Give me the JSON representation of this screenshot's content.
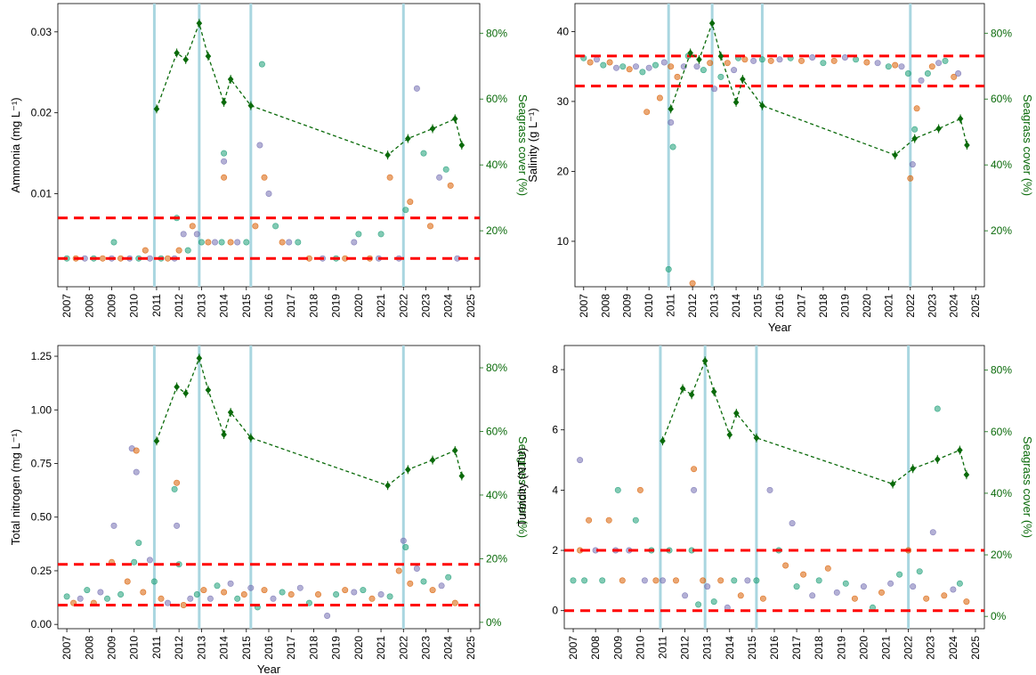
{
  "colors": {
    "threshold": "#ff0000",
    "event_line": "#a9d6e0",
    "seagrass": "#0a6a0a",
    "series": [
      "#1b9e77",
      "#d95f02",
      "#7570b3"
    ]
  },
  "chart_data": [
    {
      "type": "scatter",
      "ylabel": "Ammonia (mg L⁻¹)",
      "xlabel": "",
      "xlim": [
        2006.6,
        2025.4
      ],
      "ylim": [
        -0.0015,
        0.0335
      ],
      "yticks": [
        0.01,
        0.02,
        0.03
      ],
      "thresholds": [
        0.002,
        0.007
      ],
      "event_lines": [
        2010.9,
        2012.9,
        2015.2,
        2022.0
      ],
      "points": [
        [
          2007.0,
          0.002
        ],
        [
          2007.4,
          0.002
        ],
        [
          2007.8,
          0.002
        ],
        [
          2008.2,
          0.002
        ],
        [
          2008.6,
          0.002
        ],
        [
          2009.0,
          0.002
        ],
        [
          2009.1,
          0.004
        ],
        [
          2009.4,
          0.002
        ],
        [
          2009.8,
          0.002
        ],
        [
          2010.2,
          0.002
        ],
        [
          2010.5,
          0.003
        ],
        [
          2010.7,
          0.002
        ],
        [
          2011.2,
          0.002
        ],
        [
          2011.5,
          0.002
        ],
        [
          2011.8,
          0.002
        ],
        [
          2011.9,
          0.007
        ],
        [
          2012.0,
          0.003
        ],
        [
          2012.2,
          0.005
        ],
        [
          2012.4,
          0.003
        ],
        [
          2012.6,
          0.006
        ],
        [
          2012.8,
          0.005
        ],
        [
          2013.0,
          0.004
        ],
        [
          2013.3,
          0.004
        ],
        [
          2013.6,
          0.004
        ],
        [
          2013.9,
          0.004
        ],
        [
          2014.0,
          0.012
        ],
        [
          2014.0,
          0.014
        ],
        [
          2014.0,
          0.015
        ],
        [
          2014.3,
          0.004
        ],
        [
          2014.6,
          0.004
        ],
        [
          2015.0,
          0.004
        ],
        [
          2015.4,
          0.006
        ],
        [
          2015.6,
          0.016
        ],
        [
          2015.7,
          0.026
        ],
        [
          2015.8,
          0.012
        ],
        [
          2016.0,
          0.01
        ],
        [
          2016.3,
          0.006
        ],
        [
          2016.6,
          0.004
        ],
        [
          2016.9,
          0.004
        ],
        [
          2017.3,
          0.004
        ],
        [
          2017.8,
          0.002
        ],
        [
          2018.4,
          0.002
        ],
        [
          2019.0,
          0.002
        ],
        [
          2019.4,
          0.002
        ],
        [
          2019.8,
          0.004
        ],
        [
          2020.0,
          0.005
        ],
        [
          2020.5,
          0.002
        ],
        [
          2020.9,
          0.002
        ],
        [
          2021.0,
          0.005
        ],
        [
          2021.4,
          0.012
        ],
        [
          2021.8,
          0.002
        ],
        [
          2022.1,
          0.008
        ],
        [
          2022.3,
          0.009
        ],
        [
          2022.6,
          0.023
        ],
        [
          2022.9,
          0.015
        ],
        [
          2023.2,
          0.006
        ],
        [
          2023.6,
          0.012
        ],
        [
          2023.9,
          0.013
        ],
        [
          2024.1,
          0.011
        ],
        [
          2024.4,
          0.002
        ]
      ],
      "y2label": "Seagrass cover (%)",
      "y2ticks": [
        20,
        40,
        60,
        80
      ],
      "y2lim": [
        3,
        89
      ]
    },
    {
      "type": "scatter",
      "ylabel": "Salinity (g L⁻¹)",
      "xlabel": "Year",
      "xlim": [
        2006.6,
        2025.4
      ],
      "ylim": [
        3.5,
        44
      ],
      "yticks": [
        10,
        20,
        30,
        40
      ],
      "thresholds": [
        32.2,
        36.5
      ],
      "event_lines": [
        2010.9,
        2012.9,
        2015.2,
        2022.0
      ],
      "points": [
        [
          2007.0,
          36.2
        ],
        [
          2007.3,
          35.6
        ],
        [
          2007.6,
          36.0
        ],
        [
          2007.9,
          35.2
        ],
        [
          2008.2,
          35.6
        ],
        [
          2008.5,
          34.8
        ],
        [
          2008.8,
          35.0
        ],
        [
          2009.1,
          34.6
        ],
        [
          2009.4,
          35.0
        ],
        [
          2009.7,
          34.2
        ],
        [
          2009.9,
          28.5
        ],
        [
          2010.0,
          34.8
        ],
        [
          2010.3,
          35.2
        ],
        [
          2010.5,
          30.5
        ],
        [
          2010.7,
          35.6
        ],
        [
          2010.9,
          6.0
        ],
        [
          2011.0,
          35.0
        ],
        [
          2011.0,
          27.0
        ],
        [
          2011.1,
          23.5
        ],
        [
          2011.3,
          33.5
        ],
        [
          2011.6,
          35.0
        ],
        [
          2011.8,
          36.5
        ],
        [
          2012.0,
          4.0
        ],
        [
          2012.2,
          35.0
        ],
        [
          2012.5,
          34.5
        ],
        [
          2012.8,
          35.5
        ],
        [
          2013.0,
          31.8
        ],
        [
          2013.3,
          33.5
        ],
        [
          2013.6,
          35.5
        ],
        [
          2013.9,
          34.5
        ],
        [
          2014.1,
          36.2
        ],
        [
          2014.4,
          36.0
        ],
        [
          2014.8,
          35.8
        ],
        [
          2015.2,
          36.0
        ],
        [
          2015.6,
          35.8
        ],
        [
          2016.0,
          36.0
        ],
        [
          2016.5,
          36.2
        ],
        [
          2017.0,
          35.8
        ],
        [
          2017.5,
          36.3
        ],
        [
          2018.0,
          35.5
        ],
        [
          2018.5,
          35.8
        ],
        [
          2019.0,
          36.3
        ],
        [
          2019.5,
          36.0
        ],
        [
          2020.0,
          35.6
        ],
        [
          2020.5,
          35.5
        ],
        [
          2021.0,
          35.0
        ],
        [
          2021.3,
          35.2
        ],
        [
          2021.6,
          35.0
        ],
        [
          2021.9,
          34.0
        ],
        [
          2022.0,
          19.0
        ],
        [
          2022.1,
          21.0
        ],
        [
          2022.2,
          26.0
        ],
        [
          2022.3,
          29.0
        ],
        [
          2022.5,
          33.0
        ],
        [
          2022.8,
          34.0
        ],
        [
          2023.0,
          35.0
        ],
        [
          2023.3,
          35.5
        ],
        [
          2023.6,
          35.8
        ],
        [
          2024.0,
          33.5
        ],
        [
          2024.2,
          34.0
        ]
      ],
      "y2label": "Seagrass cover (%)",
      "y2ticks": [
        20,
        40,
        60,
        80
      ],
      "y2lim": [
        3,
        89
      ]
    },
    {
      "type": "scatter",
      "ylabel": "Total nitrogen (mg L⁻¹)",
      "xlabel": "Year",
      "xlim": [
        2006.6,
        2025.4
      ],
      "ylim": [
        -0.02,
        1.3
      ],
      "yticks": [
        0.0,
        0.25,
        0.5,
        0.75,
        1.0,
        1.25
      ],
      "ytick_labels": [
        "0.00",
        "0.25",
        "0.50",
        "0.75",
        "1.00",
        "1.25"
      ],
      "thresholds": [
        0.09,
        0.28
      ],
      "event_lines": [
        2010.9,
        2012.9,
        2015.2,
        2022.0
      ],
      "points": [
        [
          2007.0,
          0.13
        ],
        [
          2007.3,
          0.1
        ],
        [
          2007.6,
          0.12
        ],
        [
          2007.9,
          0.16
        ],
        [
          2008.2,
          0.1
        ],
        [
          2008.5,
          0.15
        ],
        [
          2008.8,
          0.12
        ],
        [
          2009.0,
          0.29
        ],
        [
          2009.1,
          0.46
        ],
        [
          2009.4,
          0.14
        ],
        [
          2009.7,
          0.2
        ],
        [
          2009.9,
          0.82
        ],
        [
          2010.0,
          0.29
        ],
        [
          2010.1,
          0.81
        ],
        [
          2010.1,
          0.71
        ],
        [
          2010.2,
          0.38
        ],
        [
          2010.4,
          0.15
        ],
        [
          2010.7,
          0.3
        ],
        [
          2010.9,
          0.2
        ],
        [
          2011.2,
          0.12
        ],
        [
          2011.5,
          0.1
        ],
        [
          2011.8,
          0.63
        ],
        [
          2011.9,
          0.66
        ],
        [
          2011.9,
          0.46
        ],
        [
          2012.0,
          0.28
        ],
        [
          2012.2,
          0.09
        ],
        [
          2012.5,
          0.12
        ],
        [
          2012.8,
          0.14
        ],
        [
          2013.1,
          0.16
        ],
        [
          2013.4,
          0.12
        ],
        [
          2013.7,
          0.18
        ],
        [
          2014.0,
          0.15
        ],
        [
          2014.3,
          0.19
        ],
        [
          2014.6,
          0.12
        ],
        [
          2014.9,
          0.14
        ],
        [
          2015.2,
          0.17
        ],
        [
          2015.5,
          0.08
        ],
        [
          2015.8,
          0.16
        ],
        [
          2016.2,
          0.12
        ],
        [
          2016.6,
          0.15
        ],
        [
          2017.0,
          0.14
        ],
        [
          2017.4,
          0.17
        ],
        [
          2017.8,
          0.1
        ],
        [
          2018.2,
          0.14
        ],
        [
          2018.6,
          0.04
        ],
        [
          2019.0,
          0.14
        ],
        [
          2019.4,
          0.16
        ],
        [
          2019.8,
          0.15
        ],
        [
          2020.2,
          0.16
        ],
        [
          2020.6,
          0.12
        ],
        [
          2021.0,
          0.14
        ],
        [
          2021.4,
          0.13
        ],
        [
          2021.8,
          0.25
        ],
        [
          2022.0,
          0.39
        ],
        [
          2022.1,
          0.36
        ],
        [
          2022.3,
          0.19
        ],
        [
          2022.6,
          0.26
        ],
        [
          2022.9,
          0.2
        ],
        [
          2023.3,
          0.16
        ],
        [
          2023.7,
          0.18
        ],
        [
          2024.0,
          0.22
        ],
        [
          2024.3,
          0.1
        ]
      ],
      "y2label": "Seagrass cover (%)",
      "y2ticks": [
        0,
        20,
        40,
        60,
        80
      ],
      "y2lim": [
        -2,
        87
      ]
    },
    {
      "type": "scatter",
      "ylabel": "Turbidity (NTU)",
      "xlabel": "",
      "xlim": [
        2006.6,
        2025.4
      ],
      "ylim": [
        -0.6,
        8.8
      ],
      "yticks": [
        0,
        2,
        4,
        6,
        8
      ],
      "thresholds": [
        0,
        2
      ],
      "event_lines": [
        2010.9,
        2012.9,
        2015.2,
        2022.0
      ],
      "points": [
        [
          2007.0,
          1.0
        ],
        [
          2007.3,
          2.0
        ],
        [
          2007.3,
          5.0
        ],
        [
          2007.5,
          1.0
        ],
        [
          2007.7,
          3.0
        ],
        [
          2008.0,
          2.0
        ],
        [
          2008.3,
          1.0
        ],
        [
          2008.6,
          3.0
        ],
        [
          2008.9,
          2.0
        ],
        [
          2009.0,
          4.0
        ],
        [
          2009.2,
          1.0
        ],
        [
          2009.5,
          2.0
        ],
        [
          2009.8,
          3.0
        ],
        [
          2010.0,
          4.0
        ],
        [
          2010.2,
          1.0
        ],
        [
          2010.5,
          2.0
        ],
        [
          2010.7,
          1.0
        ],
        [
          2011.0,
          1.0
        ],
        [
          2011.3,
          2.0
        ],
        [
          2011.6,
          1.0
        ],
        [
          2012.0,
          0.5
        ],
        [
          2012.3,
          2.0
        ],
        [
          2012.4,
          4.7
        ],
        [
          2012.4,
          4.0
        ],
        [
          2012.6,
          0.2
        ],
        [
          2012.8,
          1.0
        ],
        [
          2013.0,
          0.8
        ],
        [
          2013.3,
          0.3
        ],
        [
          2013.6,
          1.0
        ],
        [
          2013.9,
          0.1
        ],
        [
          2014.2,
          1.0
        ],
        [
          2014.5,
          0.5
        ],
        [
          2014.8,
          1.0
        ],
        [
          2015.2,
          1.0
        ],
        [
          2015.5,
          0.4
        ],
        [
          2015.8,
          4.0
        ],
        [
          2016.2,
          2.0
        ],
        [
          2016.5,
          1.5
        ],
        [
          2016.8,
          2.9
        ],
        [
          2017.0,
          0.8
        ],
        [
          2017.3,
          1.2
        ],
        [
          2017.7,
          0.5
        ],
        [
          2018.0,
          1.0
        ],
        [
          2018.4,
          1.4
        ],
        [
          2018.8,
          0.6
        ],
        [
          2019.2,
          0.9
        ],
        [
          2019.6,
          0.4
        ],
        [
          2020.0,
          0.8
        ],
        [
          2020.4,
          0.1
        ],
        [
          2020.8,
          0.6
        ],
        [
          2021.2,
          0.9
        ],
        [
          2021.6,
          1.2
        ],
        [
          2022.0,
          2.0
        ],
        [
          2022.2,
          0.8
        ],
        [
          2022.5,
          1.3
        ],
        [
          2022.8,
          0.4
        ],
        [
          2023.1,
          2.6
        ],
        [
          2023.3,
          6.7
        ],
        [
          2023.6,
          0.5
        ],
        [
          2024.0,
          0.7
        ],
        [
          2024.3,
          0.9
        ],
        [
          2024.6,
          0.3
        ]
      ],
      "y2label": "Seagrass cover (%)",
      "y2ticks": [
        0,
        20,
        40,
        60,
        80
      ],
      "y2lim": [
        -4,
        88
      ]
    }
  ],
  "seagrass_cover": {
    "x": [
      2011.0,
      2011.9,
      2012.3,
      2012.9,
      2013.3,
      2014.0,
      2014.3,
      2015.2,
      2021.3,
      2022.2,
      2023.3,
      2024.3,
      2024.6
    ],
    "y": [
      57,
      74,
      72,
      83,
      73,
      59,
      66,
      58,
      43,
      48,
      51,
      54,
      46
    ]
  },
  "x_ticks": [
    "2007",
    "2008",
    "2009",
    "2010",
    "2011",
    "2012",
    "2013",
    "2014",
    "2015",
    "2016",
    "2017",
    "2018",
    "2019",
    "2020",
    "2021",
    "2022",
    "2023",
    "2024",
    "2025"
  ]
}
